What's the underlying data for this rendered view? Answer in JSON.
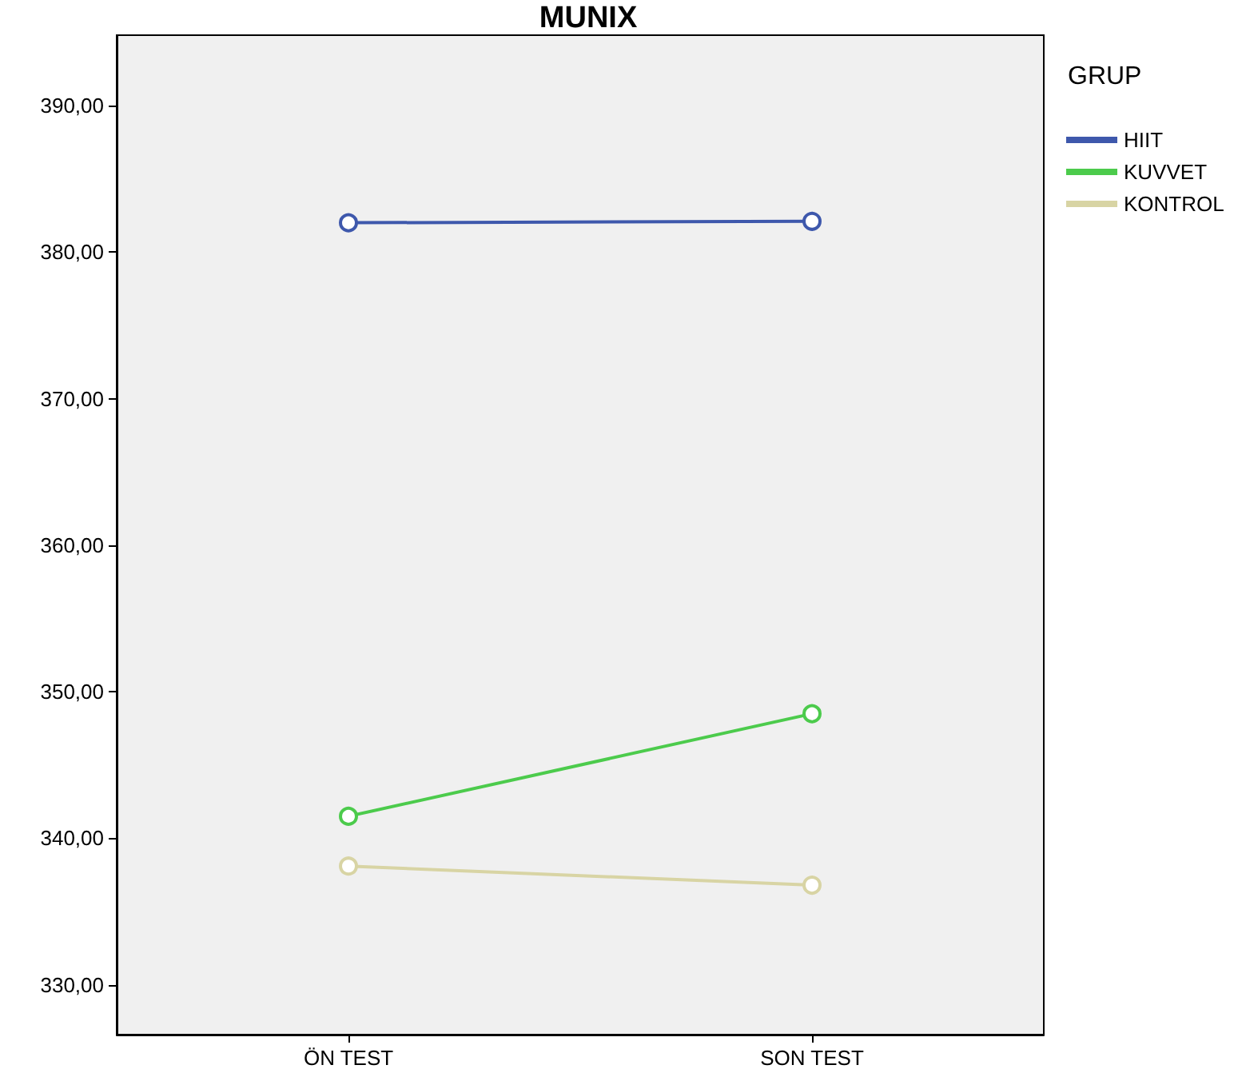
{
  "chart_data": {
    "type": "line",
    "title": "MUNIX",
    "legend_title": "GRUP",
    "categories": [
      "ÖN TEST",
      "SON TEST"
    ],
    "series": [
      {
        "name": "HIIT",
        "color": "#3e58ac",
        "values": [
          382.0,
          382.1
        ]
      },
      {
        "name": "KUVVET",
        "color": "#4ccb4c",
        "values": [
          341.5,
          348.5
        ]
      },
      {
        "name": "KONTROL",
        "color": "#d8d4a4",
        "values": [
          338.1,
          336.8
        ]
      }
    ],
    "ylim": [
      326.6,
      394.8
    ],
    "yticks": [
      {
        "value": 330,
        "label": "330,00"
      },
      {
        "value": 340,
        "label": "340,00"
      },
      {
        "value": 350,
        "label": "350,00"
      },
      {
        "value": 360,
        "label": "360,00"
      },
      {
        "value": 370,
        "label": "370,00"
      },
      {
        "value": 380,
        "label": "380,00"
      },
      {
        "value": 390,
        "label": "390,00"
      }
    ],
    "marker": "circle",
    "legend": "top right",
    "grid": false
  }
}
